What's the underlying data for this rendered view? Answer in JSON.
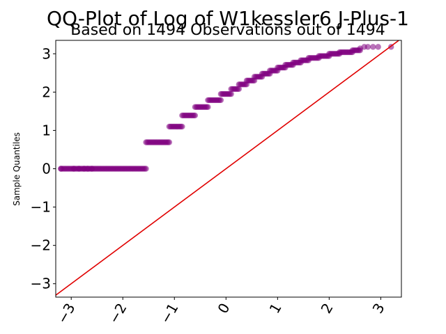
{
  "chart_data": {
    "type": "scatter",
    "title": "QQ-Plot of Log of W1kessler6 J-Plus-1",
    "subtitle": "Based on 1494 Observations out of 1494",
    "xlabel": "",
    "ylabel": "Sample Quantiles",
    "xlim": [
      -3.3,
      3.4
    ],
    "ylim": [
      -3.35,
      3.35
    ],
    "xticks": [
      -3,
      -2,
      -1,
      0,
      1,
      2,
      3
    ],
    "yticks": [
      -3,
      -2,
      -1,
      0,
      1,
      2,
      3
    ],
    "xtick_labels": [
      "−3",
      "−2",
      "−1",
      "0",
      "1",
      "2",
      "3"
    ],
    "ytick_labels": [
      "−3",
      "−2",
      "−1",
      "0",
      "1",
      "2",
      "3"
    ],
    "grid": false,
    "point_color": "#800080",
    "reference_line_color": "#e00000",
    "reference_line": {
      "slope": 1,
      "intercept": 0
    },
    "steps": [
      {
        "y": 0.0,
        "x_start": -3.2,
        "x_end": -1.55
      },
      {
        "y": 0.69,
        "x_start": -1.55,
        "x_end": -1.1
      },
      {
        "y": 1.1,
        "x_start": -1.1,
        "x_end": -0.85
      },
      {
        "y": 1.39,
        "x_start": -0.85,
        "x_end": -0.6
      },
      {
        "y": 1.61,
        "x_start": -0.6,
        "x_end": -0.35
      },
      {
        "y": 1.79,
        "x_start": -0.35,
        "x_end": -0.1
      },
      {
        "y": 1.95,
        "x_start": -0.1,
        "x_end": 0.1
      },
      {
        "y": 2.08,
        "x_start": 0.1,
        "x_end": 0.25
      },
      {
        "y": 2.2,
        "x_start": 0.25,
        "x_end": 0.4
      },
      {
        "y": 2.3,
        "x_start": 0.4,
        "x_end": 0.55
      },
      {
        "y": 2.4,
        "x_start": 0.55,
        "x_end": 0.7
      },
      {
        "y": 2.48,
        "x_start": 0.7,
        "x_end": 0.85
      },
      {
        "y": 2.56,
        "x_start": 0.85,
        "x_end": 1.0
      },
      {
        "y": 2.64,
        "x_start": 1.0,
        "x_end": 1.15
      },
      {
        "y": 2.71,
        "x_start": 1.15,
        "x_end": 1.3
      },
      {
        "y": 2.77,
        "x_start": 1.3,
        "x_end": 1.45
      },
      {
        "y": 2.83,
        "x_start": 1.45,
        "x_end": 1.6
      },
      {
        "y": 2.89,
        "x_start": 1.6,
        "x_end": 1.8
      },
      {
        "y": 2.94,
        "x_start": 1.8,
        "x_end": 2.0
      },
      {
        "y": 3.0,
        "x_start": 2.0,
        "x_end": 2.2
      },
      {
        "y": 3.04,
        "x_start": 2.2,
        "x_end": 2.45
      },
      {
        "y": 3.09,
        "x_start": 2.45,
        "x_end": 2.6
      }
    ],
    "tail_points": [
      {
        "x": -3.2,
        "y": 0.0
      },
      {
        "x": -2.95,
        "y": 0.0
      },
      {
        "x": -2.85,
        "y": 0.0
      },
      {
        "x": -2.75,
        "y": 0.0
      },
      {
        "x": -2.68,
        "y": 0.0
      },
      {
        "x": -2.6,
        "y": 0.0
      },
      {
        "x": 2.6,
        "y": 3.14
      },
      {
        "x": 2.68,
        "y": 3.18
      },
      {
        "x": 2.75,
        "y": 3.18
      },
      {
        "x": 2.85,
        "y": 3.18
      },
      {
        "x": 2.95,
        "y": 3.18
      },
      {
        "x": 3.2,
        "y": 3.18
      }
    ]
  }
}
